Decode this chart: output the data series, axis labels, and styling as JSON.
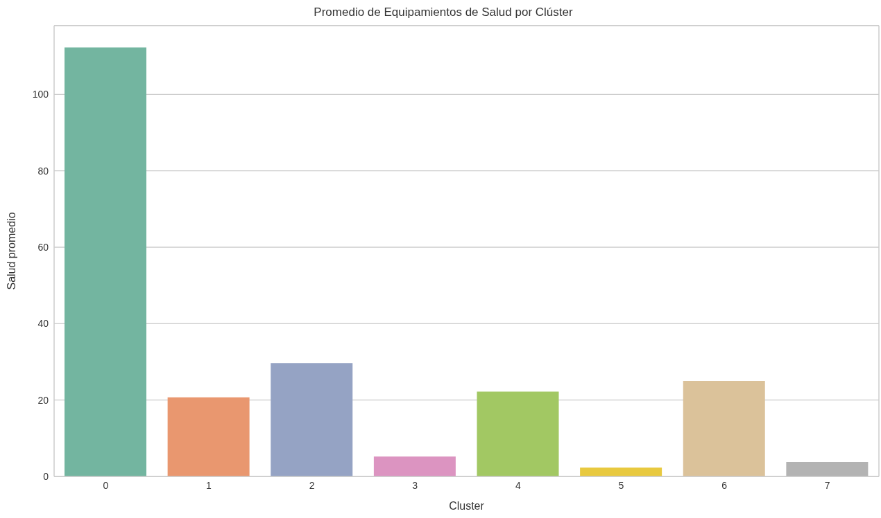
{
  "chart_data": {
    "type": "bar",
    "title": "Promedio de Equipamientos de Salud por Clúster",
    "xlabel": "Cluster",
    "ylabel": "Salud promedio",
    "categories": [
      "0",
      "1",
      "2",
      "3",
      "4",
      "5",
      "6",
      "7"
    ],
    "values": [
      112.3,
      20.7,
      29.7,
      5.2,
      22.2,
      2.3,
      25.0,
      3.8
    ],
    "colors": [
      "#73b5a0",
      "#e9976f",
      "#95a3c4",
      "#dc94c1",
      "#a2c863",
      "#e8c93f",
      "#dbc29a",
      "#b3b3b3"
    ],
    "ylim": [
      0,
      118
    ],
    "yticks": [
      0,
      20,
      40,
      60,
      80,
      100
    ],
    "grid": "y"
  }
}
